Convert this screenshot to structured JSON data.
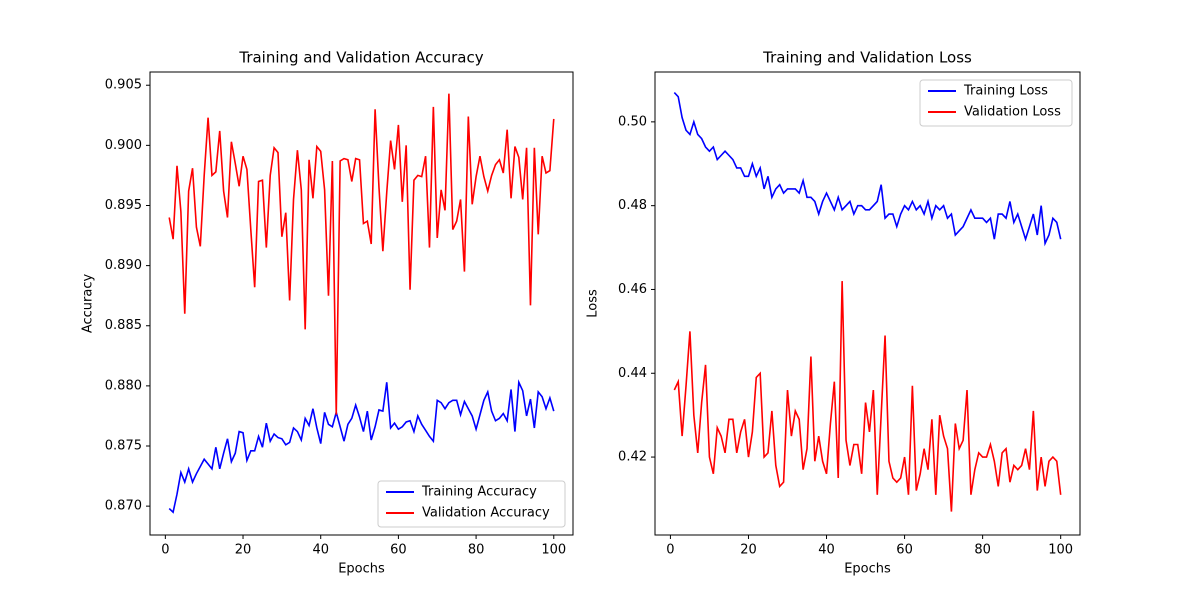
{
  "chart_data": [
    {
      "type": "line",
      "title": "Training and Validation Accuracy",
      "xlabel": "Epochs",
      "ylabel": "Accuracy",
      "x": [
        1,
        2,
        3,
        4,
        5,
        6,
        7,
        8,
        9,
        10,
        11,
        12,
        13,
        14,
        15,
        16,
        17,
        18,
        19,
        20,
        21,
        22,
        23,
        24,
        25,
        26,
        27,
        28,
        29,
        30,
        31,
        32,
        33,
        34,
        35,
        36,
        37,
        38,
        39,
        40,
        41,
        42,
        43,
        44,
        45,
        46,
        47,
        48,
        49,
        50,
        51,
        52,
        53,
        54,
        55,
        56,
        57,
        58,
        59,
        60,
        61,
        62,
        63,
        64,
        65,
        66,
        67,
        68,
        69,
        70,
        71,
        72,
        73,
        74,
        75,
        76,
        77,
        78,
        79,
        80,
        81,
        82,
        83,
        84,
        85,
        86,
        87,
        88,
        89,
        90,
        91,
        92,
        93,
        94,
        95,
        96,
        97,
        98,
        99,
        100
      ],
      "series": [
        {
          "name": "Training Accuracy",
          "color": "#0000ff",
          "values": [
            0.8698,
            0.8695,
            0.871,
            0.8728,
            0.872,
            0.8731,
            0.872,
            0.8727,
            0.8733,
            0.8739,
            0.8735,
            0.8731,
            0.8749,
            0.8731,
            0.8744,
            0.8756,
            0.8737,
            0.8744,
            0.8762,
            0.8761,
            0.8738,
            0.8746,
            0.8746,
            0.8758,
            0.8749,
            0.8769,
            0.8754,
            0.876,
            0.8757,
            0.8756,
            0.8751,
            0.8753,
            0.8765,
            0.8762,
            0.8755,
            0.8773,
            0.8767,
            0.8781,
            0.8765,
            0.8752,
            0.8778,
            0.8768,
            0.8766,
            0.8778,
            0.8766,
            0.8754,
            0.8768,
            0.8773,
            0.8784,
            0.8774,
            0.8762,
            0.8779,
            0.8755,
            0.8766,
            0.878,
            0.8779,
            0.8803,
            0.8765,
            0.8769,
            0.8764,
            0.8766,
            0.877,
            0.8771,
            0.8762,
            0.8775,
            0.8768,
            0.8763,
            0.8758,
            0.8754,
            0.8788,
            0.8786,
            0.8781,
            0.8786,
            0.8788,
            0.8788,
            0.8776,
            0.8787,
            0.8781,
            0.8775,
            0.8764,
            0.8776,
            0.8788,
            0.8795,
            0.8779,
            0.8771,
            0.8773,
            0.8777,
            0.8771,
            0.8797,
            0.8762,
            0.8803,
            0.8796,
            0.8775,
            0.8789,
            0.8765,
            0.8795,
            0.8791,
            0.8781,
            0.879,
            0.8779
          ]
        },
        {
          "name": "Validation Accuracy",
          "color": "#ff0000",
          "values": [
            0.894,
            0.8922,
            0.8983,
            0.8945,
            0.886,
            0.8962,
            0.8981,
            0.8932,
            0.8916,
            0.8975,
            0.9023,
            0.8975,
            0.8978,
            0.9012,
            0.8962,
            0.894,
            0.9003,
            0.8985,
            0.8966,
            0.8991,
            0.898,
            0.893,
            0.8882,
            0.897,
            0.8971,
            0.8915,
            0.8975,
            0.8998,
            0.8994,
            0.8924,
            0.8944,
            0.8871,
            0.8955,
            0.8996,
            0.8963,
            0.8847,
            0.8988,
            0.8956,
            0.8999,
            0.8995,
            0.8963,
            0.8875,
            0.8987,
            0.8776,
            0.8987,
            0.8989,
            0.8988,
            0.897,
            0.8989,
            0.8988,
            0.8935,
            0.8937,
            0.8918,
            0.903,
            0.8965,
            0.8912,
            0.8961,
            0.9004,
            0.898,
            0.9017,
            0.8953,
            0.9,
            0.888,
            0.8971,
            0.8975,
            0.8974,
            0.8991,
            0.8915,
            0.9032,
            0.8923,
            0.8963,
            0.8946,
            0.9043,
            0.893,
            0.8937,
            0.8955,
            0.8895,
            0.9024,
            0.8951,
            0.8974,
            0.8991,
            0.8974,
            0.8962,
            0.8975,
            0.8984,
            0.8988,
            0.8977,
            0.9013,
            0.8956,
            0.8999,
            0.899,
            0.8955,
            0.8998,
            0.8867,
            0.8998,
            0.8926,
            0.8991,
            0.8977,
            0.8979,
            0.9022
          ]
        }
      ],
      "xlim": [
        -3.95,
        104.95
      ],
      "xticks": [
        0,
        20,
        40,
        60,
        80,
        100
      ],
      "ylim": [
        0.8676,
        0.9061
      ],
      "yticks": [
        {
          "value": 0.87,
          "label": "0.870"
        },
        0.875,
        {
          "value": 0.88,
          "label": "0.880"
        },
        0.885,
        {
          "value": 0.89,
          "label": "0.890"
        },
        0.895,
        {
          "value": 0.9,
          "label": "0.900"
        },
        0.905
      ],
      "legend": "lower right"
    },
    {
      "type": "line",
      "title": "Training and Validation Loss",
      "xlabel": "Epochs",
      "ylabel": "Loss",
      "x": [
        1,
        2,
        3,
        4,
        5,
        6,
        7,
        8,
        9,
        10,
        11,
        12,
        13,
        14,
        15,
        16,
        17,
        18,
        19,
        20,
        21,
        22,
        23,
        24,
        25,
        26,
        27,
        28,
        29,
        30,
        31,
        32,
        33,
        34,
        35,
        36,
        37,
        38,
        39,
        40,
        41,
        42,
        43,
        44,
        45,
        46,
        47,
        48,
        49,
        50,
        51,
        52,
        53,
        54,
        55,
        56,
        57,
        58,
        59,
        60,
        61,
        62,
        63,
        64,
        65,
        66,
        67,
        68,
        69,
        70,
        71,
        72,
        73,
        74,
        75,
        76,
        77,
        78,
        79,
        80,
        81,
        82,
        83,
        84,
        85,
        86,
        87,
        88,
        89,
        90,
        91,
        92,
        93,
        94,
        95,
        96,
        97,
        98,
        99,
        100
      ],
      "series": [
        {
          "name": "Training Loss",
          "color": "#0000ff",
          "values": [
            0.507,
            0.506,
            0.501,
            0.498,
            0.497,
            0.5,
            0.497,
            0.496,
            0.494,
            0.493,
            0.494,
            0.491,
            0.492,
            0.493,
            0.492,
            0.491,
            0.489,
            0.489,
            0.487,
            0.487,
            0.49,
            0.487,
            0.489,
            0.484,
            0.487,
            0.482,
            0.484,
            0.485,
            0.483,
            0.484,
            0.484,
            0.484,
            0.483,
            0.486,
            0.482,
            0.482,
            0.481,
            0.478,
            0.481,
            0.483,
            0.481,
            0.479,
            0.482,
            0.479,
            0.48,
            0.481,
            0.478,
            0.48,
            0.48,
            0.479,
            0.479,
            0.48,
            0.481,
            0.485,
            0.477,
            0.478,
            0.478,
            0.475,
            0.478,
            0.48,
            0.479,
            0.481,
            0.479,
            0.48,
            0.478,
            0.481,
            0.477,
            0.48,
            0.479,
            0.48,
            0.477,
            0.478,
            0.473,
            0.474,
            0.475,
            0.477,
            0.479,
            0.477,
            0.477,
            0.477,
            0.476,
            0.477,
            0.472,
            0.478,
            0.478,
            0.477,
            0.481,
            0.476,
            0.478,
            0.475,
            0.472,
            0.475,
            0.478,
            0.473,
            0.48,
            0.471,
            0.473,
            0.477,
            0.476,
            0.472
          ]
        },
        {
          "name": "Validation Loss",
          "color": "#ff0000",
          "values": [
            0.436,
            0.438,
            0.425,
            0.437,
            0.45,
            0.43,
            0.421,
            0.433,
            0.442,
            0.42,
            0.416,
            0.427,
            0.425,
            0.421,
            0.429,
            0.429,
            0.421,
            0.426,
            0.429,
            0.42,
            0.426,
            0.439,
            0.44,
            0.42,
            0.421,
            0.431,
            0.418,
            0.413,
            0.414,
            0.436,
            0.425,
            0.431,
            0.429,
            0.417,
            0.422,
            0.444,
            0.419,
            0.425,
            0.419,
            0.416,
            0.428,
            0.438,
            0.415,
            0.462,
            0.424,
            0.418,
            0.423,
            0.423,
            0.416,
            0.433,
            0.426,
            0.436,
            0.411,
            0.43,
            0.449,
            0.419,
            0.415,
            0.414,
            0.415,
            0.42,
            0.411,
            0.437,
            0.412,
            0.416,
            0.422,
            0.417,
            0.429,
            0.411,
            0.43,
            0.425,
            0.422,
            0.407,
            0.428,
            0.422,
            0.424,
            0.436,
            0.411,
            0.417,
            0.421,
            0.42,
            0.42,
            0.423,
            0.419,
            0.413,
            0.421,
            0.422,
            0.414,
            0.418,
            0.417,
            0.418,
            0.422,
            0.417,
            0.431,
            0.412,
            0.42,
            0.413,
            0.419,
            0.42,
            0.419,
            0.411
          ]
        }
      ],
      "xlim": [
        -3.95,
        104.95
      ],
      "xticks": [
        0,
        20,
        40,
        60,
        80,
        100
      ],
      "ylim": [
        0.4014,
        0.5119
      ],
      "yticks": [
        0.42,
        0.44,
        0.46,
        0.48,
        {
          "value": 0.5,
          "label": "0.50"
        }
      ],
      "legend": "upper right"
    }
  ]
}
